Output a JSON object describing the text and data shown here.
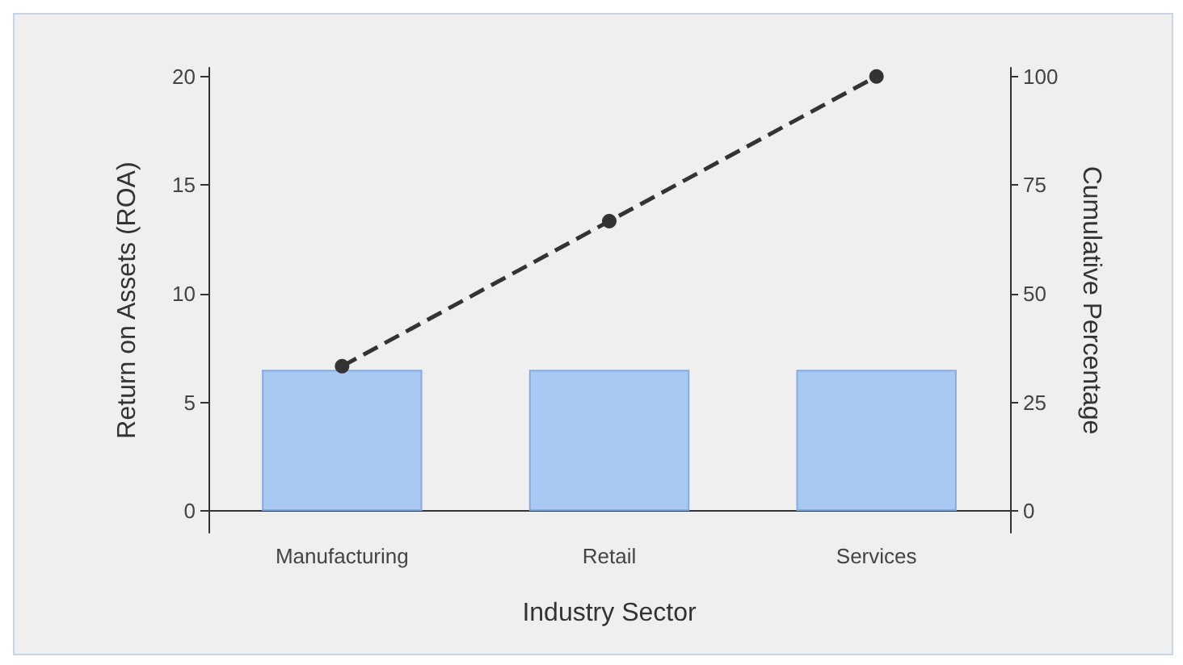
{
  "chart_data": {
    "type": "bar",
    "xlabel": "Industry Sector",
    "ylabel": "Return on Assets (ROA)",
    "y2label": "Cumulative Percentage",
    "categories": [
      "Manufacturing",
      "Retail",
      "Services"
    ],
    "series": [
      {
        "color": "#a9c9f2",
        "values": [
          6.5,
          6.5,
          6.5
        ]
      },
      {
        "type": "line",
        "axis": "y2",
        "color": "#333333",
        "values": [
          33.3,
          66.7,
          100
        ],
        "marker": "circle",
        "line_style": "dashed"
      }
    ],
    "ylim": [
      -1,
      20.4
    ],
    "yticks": [
      0,
      5,
      10,
      15,
      20
    ],
    "y2lim": [
      -5,
      102
    ],
    "y2ticks": [
      0,
      25,
      50,
      75,
      100
    ],
    "grid": false
  }
}
